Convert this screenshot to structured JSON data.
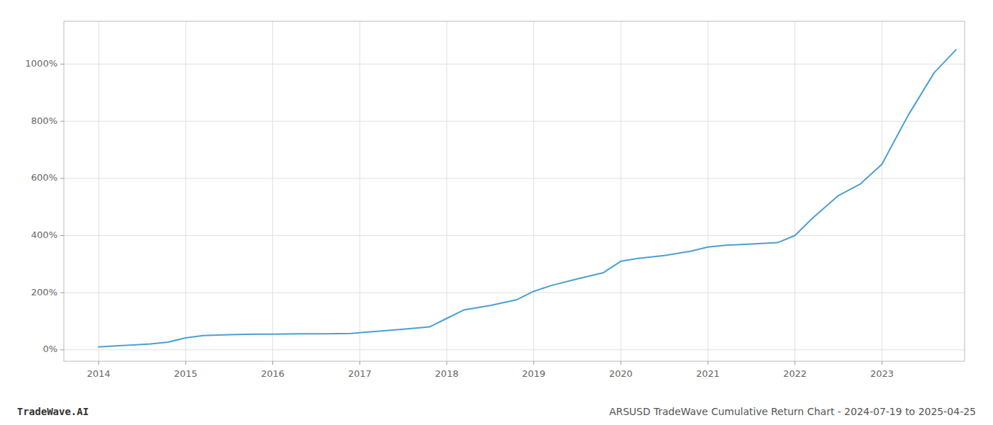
{
  "chart_data": {
    "type": "line",
    "title": "ARSUSD TradeWave Cumulative Return Chart - 2024-07-19 to 2025-04-25",
    "annotations": [
      "TradeWave.AI"
    ],
    "color": "#4a9fd4",
    "grid": true,
    "x": [
      2014.0,
      2014.1,
      2014.2,
      2014.4,
      2014.6,
      2014.8,
      2015.0,
      2015.2,
      2015.5,
      2015.8,
      2016.0,
      2016.3,
      2016.6,
      2016.9,
      2017.0,
      2017.2,
      2017.5,
      2017.8,
      2018.0,
      2018.2,
      2018.5,
      2018.8,
      2019.0,
      2019.2,
      2019.5,
      2019.8,
      2020.0,
      2020.2,
      2020.5,
      2020.8,
      2021.0,
      2021.2,
      2021.5,
      2021.8,
      2022.0,
      2022.2,
      2022.5,
      2022.75,
      2023.0,
      2023.3,
      2023.6,
      2023.85
    ],
    "values": [
      10,
      12,
      14,
      17,
      21,
      27,
      42,
      50,
      53,
      55,
      55,
      56,
      56,
      57,
      60,
      65,
      72,
      80,
      110,
      140,
      155,
      175,
      205,
      225,
      248,
      270,
      310,
      320,
      330,
      345,
      360,
      366,
      370,
      375,
      400,
      460,
      540,
      580,
      650,
      820,
      970,
      1050
    ],
    "xlim": [
      2013.6,
      2023.95
    ],
    "ylim": [
      -40,
      1150
    ],
    "xticks": [
      2014,
      2015,
      2016,
      2017,
      2018,
      2019,
      2020,
      2021,
      2022,
      2023
    ],
    "yticks": [
      {
        "value": 0,
        "label": "0%"
      },
      {
        "value": 200,
        "label": "200%"
      },
      {
        "value": 400,
        "label": "400%"
      },
      {
        "value": 600,
        "label": "600%"
      },
      {
        "value": 800,
        "label": "800%"
      },
      {
        "value": 1000,
        "label": "1000%"
      }
    ]
  }
}
